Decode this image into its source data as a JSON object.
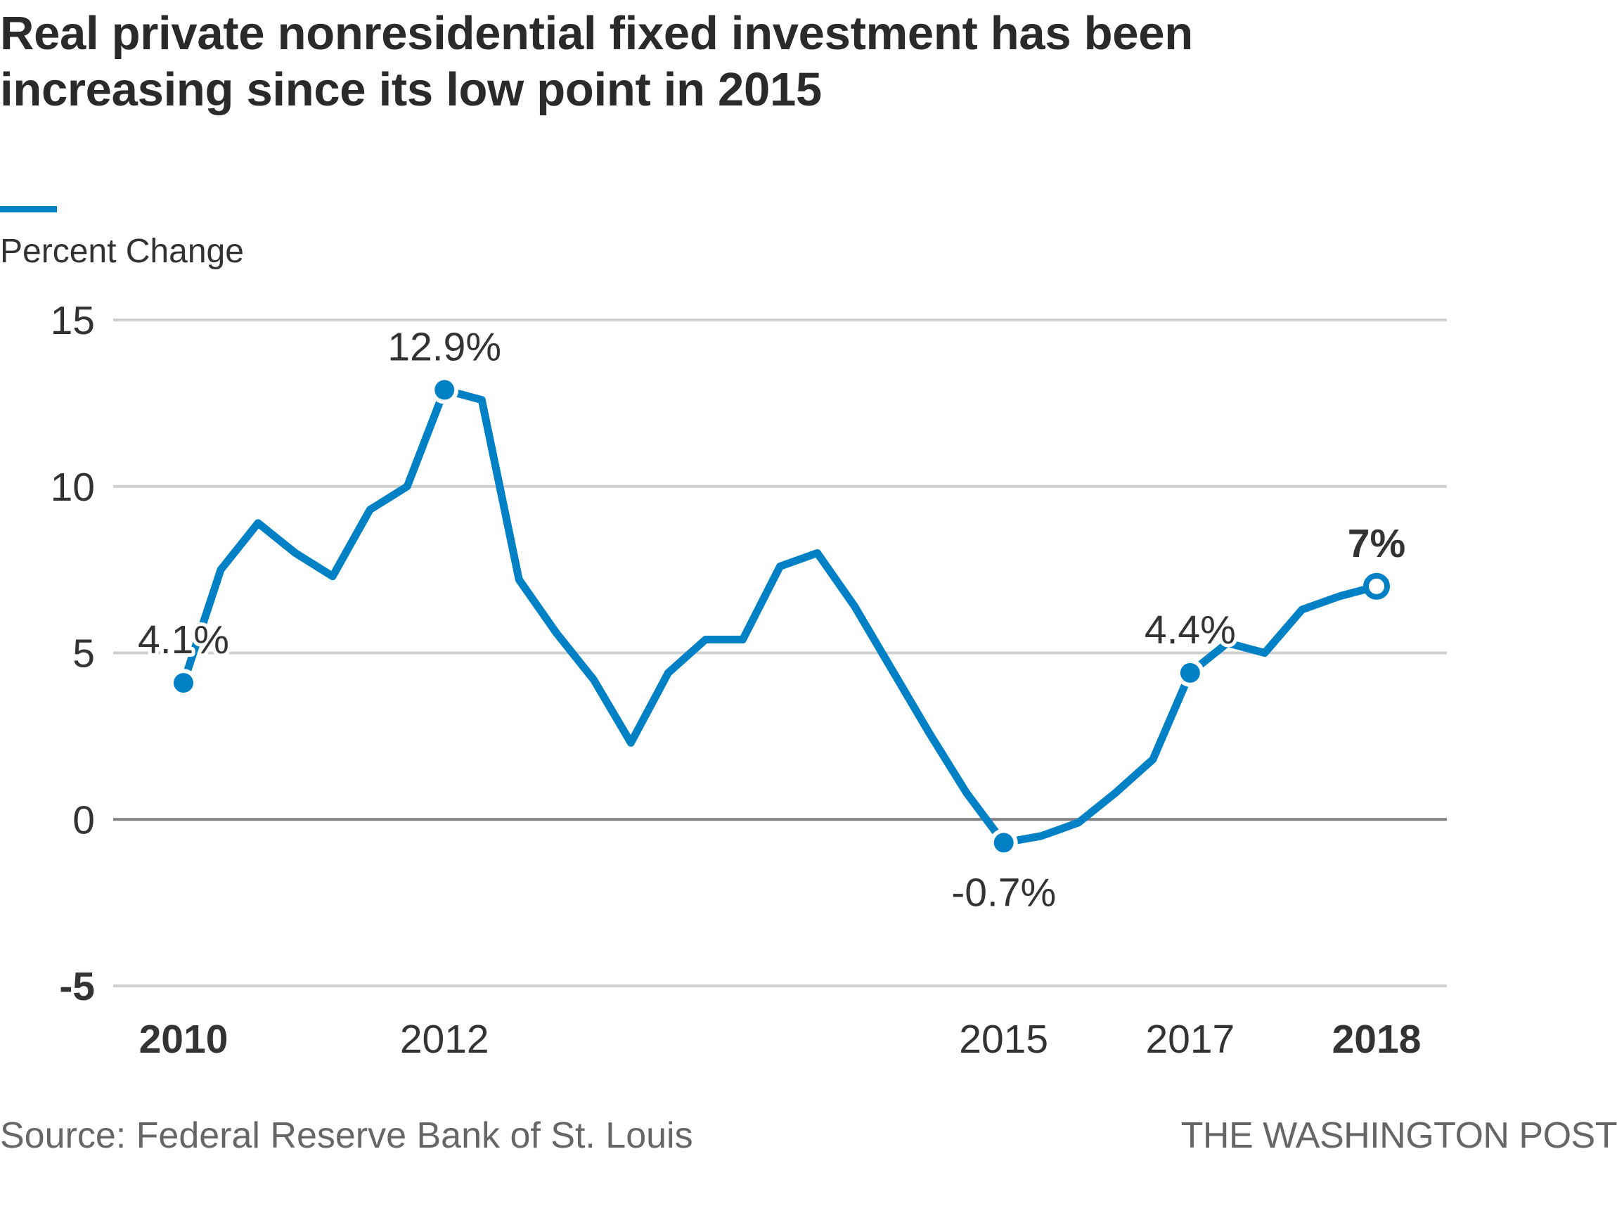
{
  "title": "Real private nonresidential fixed investment has been increasing since its low point in 2015",
  "y_axis_label": "Percent Change",
  "footer": {
    "source": "Source: Federal Reserve Bank of St. Louis",
    "credit": "THE WASHINGTON POST"
  },
  "colors": {
    "line": "#0081c6",
    "grid": "#d0d0d0",
    "zero_line": "#808080",
    "text": "#333333",
    "footer_text": "#666666"
  },
  "chart_data": {
    "type": "line",
    "title": "Real private nonresidential fixed investment has been increasing since its low point in 2015",
    "xlabel": "",
    "ylabel": "Percent Change",
    "ylim": [
      -5,
      15
    ],
    "yticks": [
      {
        "value": 15,
        "label": "15",
        "bold": false
      },
      {
        "value": 10,
        "label": "10",
        "bold": false
      },
      {
        "value": 5,
        "label": "5",
        "bold": false
      },
      {
        "value": 0,
        "label": "0",
        "bold": false
      },
      {
        "value": -5,
        "label": "-5",
        "bold": true
      }
    ],
    "grid": true,
    "legend": "none",
    "x_index_range": [
      0,
      32
    ],
    "xticks": [
      {
        "index": 0,
        "label": "2010",
        "bold": true
      },
      {
        "index": 7,
        "label": "2012",
        "bold": false
      },
      {
        "index": 22,
        "label": "2015",
        "bold": false
      },
      {
        "index": 27,
        "label": "2017",
        "bold": false
      },
      {
        "index": 32,
        "label": "2018",
        "bold": true
      }
    ],
    "series": [
      {
        "name": "Real private nonresidential fixed investment, percent change",
        "values": [
          4.1,
          7.5,
          8.9,
          8.0,
          7.3,
          9.3,
          10.0,
          12.9,
          12.6,
          7.2,
          5.6,
          4.2,
          2.3,
          4.4,
          5.4,
          5.4,
          7.6,
          8.0,
          6.4,
          4.5,
          2.6,
          0.8,
          -0.7,
          -0.5,
          -0.1,
          0.8,
          1.8,
          4.4,
          5.3,
          5.0,
          6.3,
          6.7,
          7.0
        ]
      }
    ],
    "annotations": [
      {
        "index": 0,
        "value": 4.1,
        "label": "4.1%",
        "position": "above",
        "bold": false,
        "marker": "filled"
      },
      {
        "index": 7,
        "value": 12.9,
        "label": "12.9%",
        "position": "above",
        "bold": false,
        "marker": "filled"
      },
      {
        "index": 22,
        "value": -0.7,
        "label": "-0.7%",
        "position": "below",
        "bold": false,
        "marker": "filled"
      },
      {
        "index": 27,
        "value": 4.4,
        "label": "4.4%",
        "position": "above",
        "bold": false,
        "marker": "filled"
      },
      {
        "index": 32,
        "value": 7.0,
        "label": "7%",
        "position": "above",
        "bold": true,
        "marker": "open"
      }
    ]
  }
}
